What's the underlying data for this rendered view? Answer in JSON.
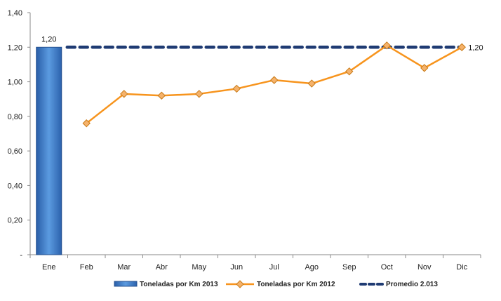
{
  "chart_data": {
    "type": "bar",
    "categories": [
      "Ene",
      "Feb",
      "Mar",
      "Abr",
      "May",
      "Jun",
      "Jul",
      "Ago",
      "Sep",
      "Oct",
      "Nov",
      "Dic"
    ],
    "yticks": [
      "-",
      "0,20",
      "0,40",
      "0,60",
      "0,80",
      "1,00",
      "1,20",
      "1,40"
    ],
    "ylim": [
      0,
      1.4
    ],
    "grid": false,
    "legend_position": "bottom",
    "series": [
      {
        "name": "Toneladas por Km 2013",
        "kind": "bar",
        "color": "#3b78c4",
        "values": [
          1.2,
          null,
          null,
          null,
          null,
          null,
          null,
          null,
          null,
          null,
          null,
          null
        ],
        "data_labels": [
          "1,20"
        ]
      },
      {
        "name": "Toneladas por Km 2012",
        "kind": "line",
        "color": "#f7941d",
        "marker": "diamond",
        "values": [
          null,
          0.76,
          0.93,
          0.92,
          0.93,
          0.96,
          1.01,
          0.99,
          1.06,
          1.21,
          1.08,
          1.2
        ]
      },
      {
        "name": "Promedio 2.013",
        "kind": "line",
        "style": "dashed",
        "color": "#1f3b73",
        "values": [
          1.2,
          1.2,
          1.2,
          1.2,
          1.2,
          1.2,
          1.2,
          1.2,
          1.2,
          1.2,
          1.2,
          1.2
        ],
        "data_labels": [
          "1,20"
        ]
      }
    ]
  }
}
